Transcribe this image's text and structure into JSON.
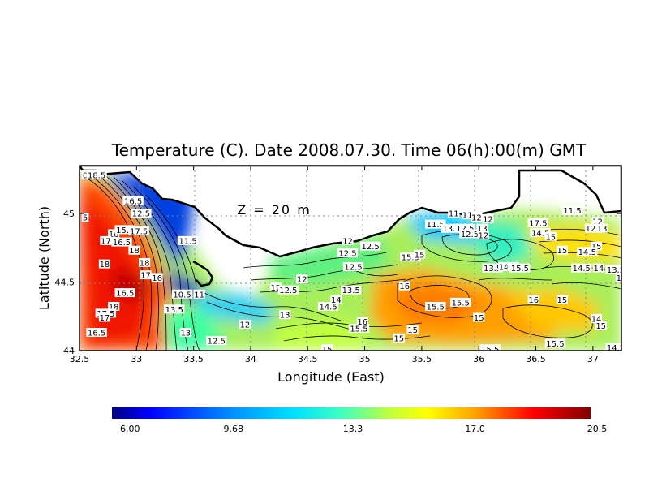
{
  "chart_data": {
    "type": "heatmap",
    "title": "Temperature (C). Date 2008.07.30. Time 06(h):00(m) GMT",
    "xlabel": "Longitude (East)",
    "ylabel": "Latitude (North)",
    "annotation": "Z = 20 m",
    "xlim": [
      32.5,
      37.25
    ],
    "ylim": [
      44.0,
      45.35
    ],
    "x_ticks": [
      "32.5",
      "33",
      "33.5",
      "34",
      "34.5",
      "35",
      "35.5",
      "36",
      "36.5",
      "37"
    ],
    "y_ticks": [
      "44",
      "44.5",
      "45"
    ],
    "grid": true,
    "grid_style": "dotted",
    "colorbar": {
      "orientation": "horizontal",
      "position": "bottom",
      "ticks": [
        "6.00",
        "9.68",
        "13.3",
        "17.0",
        "20.5"
      ],
      "range": [
        6.0,
        20.5
      ],
      "colors": [
        "#000080",
        "#0000ff",
        "#0080ff",
        "#00e0ff",
        "#40ffc0",
        "#c0ff40",
        "#ffff00",
        "#ff8000",
        "#ff0000",
        "#800000"
      ]
    },
    "contour_labels": [
      {
        "text": "0",
        "lon": 32.55,
        "lat": 45.28
      },
      {
        "text": "18.5",
        "lon": 32.65,
        "lat": 45.28
      },
      {
        "text": "5",
        "lon": 32.55,
        "lat": 44.97
      },
      {
        "text": "16.5",
        "lon": 32.97,
        "lat": 45.09
      },
      {
        "text": "12.5",
        "lon": 33.04,
        "lat": 45.0
      },
      {
        "text": "16",
        "lon": 32.8,
        "lat": 44.85
      },
      {
        "text": "15.5",
        "lon": 32.9,
        "lat": 44.88
      },
      {
        "text": "17.5",
        "lon": 33.02,
        "lat": 44.87
      },
      {
        "text": "17",
        "lon": 32.73,
        "lat": 44.8
      },
      {
        "text": "16.5",
        "lon": 32.87,
        "lat": 44.79
      },
      {
        "text": "18",
        "lon": 32.98,
        "lat": 44.73
      },
      {
        "text": "18",
        "lon": 32.72,
        "lat": 44.63
      },
      {
        "text": "18",
        "lon": 33.07,
        "lat": 44.64
      },
      {
        "text": "17",
        "lon": 33.08,
        "lat": 44.55
      },
      {
        "text": "16",
        "lon": 33.18,
        "lat": 44.53
      },
      {
        "text": "11.5",
        "lon": 33.45,
        "lat": 44.8
      },
      {
        "text": "16.5",
        "lon": 32.9,
        "lat": 44.42
      },
      {
        "text": "18",
        "lon": 32.8,
        "lat": 44.32
      },
      {
        "text": "17.5",
        "lon": 32.73,
        "lat": 44.27
      },
      {
        "text": "17",
        "lon": 32.72,
        "lat": 44.24
      },
      {
        "text": "16.5",
        "lon": 32.65,
        "lat": 44.13
      },
      {
        "text": "10.5",
        "lon": 33.4,
        "lat": 44.41
      },
      {
        "text": "11",
        "lon": 33.55,
        "lat": 44.41
      },
      {
        "text": "13.5",
        "lon": 33.33,
        "lat": 44.3
      },
      {
        "text": "13",
        "lon": 33.43,
        "lat": 44.13
      },
      {
        "text": "12.5",
        "lon": 33.7,
        "lat": 44.07
      },
      {
        "text": "12",
        "lon": 33.95,
        "lat": 44.19
      },
      {
        "text": "12",
        "lon": 34.22,
        "lat": 44.46
      },
      {
        "text": "12.5",
        "lon": 34.33,
        "lat": 44.44
      },
      {
        "text": "12",
        "lon": 34.45,
        "lat": 44.52
      },
      {
        "text": "13",
        "lon": 34.3,
        "lat": 44.26
      },
      {
        "text": "14.5",
        "lon": 34.68,
        "lat": 44.32
      },
      {
        "text": "12",
        "lon": 34.85,
        "lat": 44.8
      },
      {
        "text": "12.5",
        "lon": 34.85,
        "lat": 44.71
      },
      {
        "text": "12.5",
        "lon": 35.05,
        "lat": 44.76
      },
      {
        "text": "12.5",
        "lon": 34.9,
        "lat": 44.61
      },
      {
        "text": "13.5",
        "lon": 34.88,
        "lat": 44.44
      },
      {
        "text": "14",
        "lon": 34.75,
        "lat": 44.37
      },
      {
        "text": "15.5",
        "lon": 34.95,
        "lat": 44.16
      },
      {
        "text": "16",
        "lon": 34.98,
        "lat": 44.21
      },
      {
        "text": "15.5",
        "lon": 35.4,
        "lat": 44.68
      },
      {
        "text": "15",
        "lon": 35.48,
        "lat": 44.7
      },
      {
        "text": "16",
        "lon": 35.35,
        "lat": 44.47
      },
      {
        "text": "15.5",
        "lon": 35.62,
        "lat": 44.32
      },
      {
        "text": "15.5",
        "lon": 35.84,
        "lat": 44.35
      },
      {
        "text": "15",
        "lon": 35.42,
        "lat": 44.15
      },
      {
        "text": "15",
        "lon": 36.0,
        "lat": 44.24
      },
      {
        "text": "11.5",
        "lon": 35.62,
        "lat": 44.92
      },
      {
        "text": "11",
        "lon": 35.78,
        "lat": 45.0
      },
      {
        "text": "11",
        "lon": 35.9,
        "lat": 44.99
      },
      {
        "text": "13.5",
        "lon": 35.76,
        "lat": 44.89
      },
      {
        "text": "12.5",
        "lon": 35.88,
        "lat": 44.89
      },
      {
        "text": "12.5",
        "lon": 35.92,
        "lat": 44.85
      },
      {
        "text": "12",
        "lon": 35.98,
        "lat": 44.97
      },
      {
        "text": "12",
        "lon": 36.08,
        "lat": 44.96
      },
      {
        "text": "13",
        "lon": 36.03,
        "lat": 44.89
      },
      {
        "text": "12",
        "lon": 36.04,
        "lat": 44.84
      },
      {
        "text": "13.5",
        "lon": 36.12,
        "lat": 44.6
      },
      {
        "text": "14",
        "lon": 36.22,
        "lat": 44.61
      },
      {
        "text": "15",
        "lon": 36.3,
        "lat": 44.61
      },
      {
        "text": "15.5",
        "lon": 36.36,
        "lat": 44.6
      },
      {
        "text": "16",
        "lon": 36.48,
        "lat": 44.37
      },
      {
        "text": "15",
        "lon": 36.73,
        "lat": 44.37
      },
      {
        "text": "17.5",
        "lon": 36.52,
        "lat": 44.93
      },
      {
        "text": "14.5",
        "lon": 36.54,
        "lat": 44.86
      },
      {
        "text": "15",
        "lon": 36.63,
        "lat": 44.83
      },
      {
        "text": "15",
        "lon": 36.73,
        "lat": 44.73
      },
      {
        "text": "11.5",
        "lon": 36.82,
        "lat": 45.02
      },
      {
        "text": "12",
        "lon": 37.04,
        "lat": 44.94
      },
      {
        "text": "12",
        "lon": 36.98,
        "lat": 44.89
      },
      {
        "text": "13",
        "lon": 37.08,
        "lat": 44.89
      },
      {
        "text": "15",
        "lon": 37.03,
        "lat": 44.76
      },
      {
        "text": "14.5",
        "lon": 36.95,
        "lat": 44.72
      },
      {
        "text": "14.5",
        "lon": 36.9,
        "lat": 44.6
      },
      {
        "text": "14",
        "lon": 37.05,
        "lat": 44.6
      },
      {
        "text": "13.5",
        "lon": 37.2,
        "lat": 44.59
      },
      {
        "text": "15",
        "lon": 37.25,
        "lat": 44.53
      },
      {
        "text": "14",
        "lon": 37.03,
        "lat": 44.23
      },
      {
        "text": "15",
        "lon": 37.07,
        "lat": 44.18
      },
      {
        "text": "14.5",
        "lon": 37.2,
        "lat": 44.02
      },
      {
        "text": "15.5",
        "lon": 36.67,
        "lat": 44.05
      },
      {
        "text": "15.5",
        "lon": 36.1,
        "lat": 44.01
      },
      {
        "text": "15",
        "lon": 34.67,
        "lat": 44.01
      },
      {
        "text": "15",
        "lon": 35.3,
        "lat": 44.09
      },
      {
        "text": "1",
        "lon": 37.28,
        "lat": 44.37
      }
    ]
  }
}
